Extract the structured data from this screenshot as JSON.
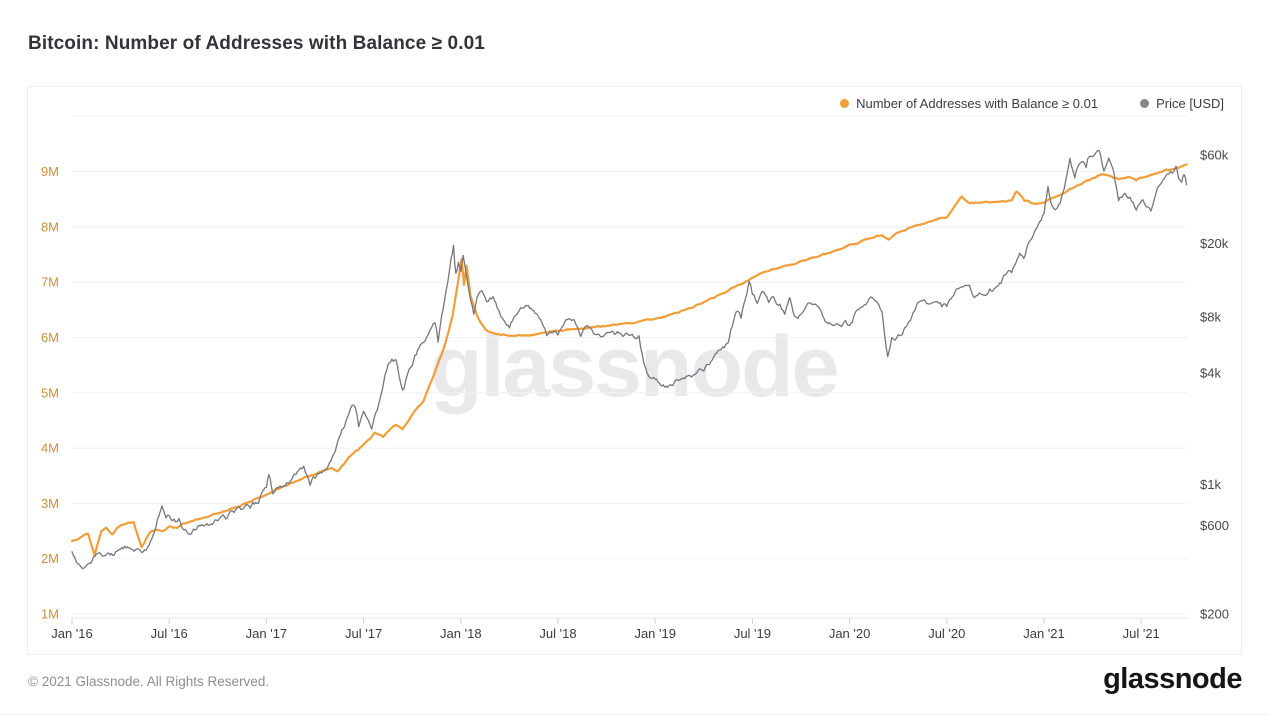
{
  "page": {
    "title": "Bitcoin: Number of Addresses with Balance ≥ 0.01",
    "footer_left": "© 2021 Glassnode. All Rights Reserved.",
    "footer_logo": "glassnode",
    "watermark": "glassnode"
  },
  "legend": [
    {
      "label": "Number of Addresses with Balance ≥ 0.01",
      "color": "#f29e38"
    },
    {
      "label": "Price [USD]",
      "color": "#85858a"
    }
  ],
  "chart_data": {
    "type": "line",
    "title": "Bitcoin: Number of Addresses with Balance ≥ 0.01",
    "x_unit": "months since Jan 2016",
    "x_ticks": [
      {
        "m": 0,
        "label": "Jan '16"
      },
      {
        "m": 6,
        "label": "Jul '16"
      },
      {
        "m": 12,
        "label": "Jan '17"
      },
      {
        "m": 18,
        "label": "Jul '17"
      },
      {
        "m": 24,
        "label": "Jan '18"
      },
      {
        "m": 30,
        "label": "Jul '18"
      },
      {
        "m": 36,
        "label": "Jan '19"
      },
      {
        "m": 42,
        "label": "Jul '19"
      },
      {
        "m": 48,
        "label": "Jan '20"
      },
      {
        "m": 54,
        "label": "Jul '20"
      },
      {
        "m": 60,
        "label": "Jan '21"
      },
      {
        "m": 66,
        "label": "Jul '21"
      }
    ],
    "y_left": {
      "scale": "linear",
      "unit": "addresses (millions)",
      "range": [
        1,
        10
      ],
      "grid": true,
      "ticks": [
        {
          "v": 1,
          "label": "1M"
        },
        {
          "v": 2,
          "label": "2M"
        },
        {
          "v": 3,
          "label": "3M"
        },
        {
          "v": 4,
          "label": "4M"
        },
        {
          "v": 5,
          "label": "5M"
        },
        {
          "v": 6,
          "label": "6M"
        },
        {
          "v": 7,
          "label": "7M"
        },
        {
          "v": 8,
          "label": "8M"
        },
        {
          "v": 9,
          "label": "9M"
        }
      ]
    },
    "y_right": {
      "scale": "log",
      "unit": "USD",
      "range": [
        200,
        97000
      ],
      "grid": false,
      "ticks": [
        {
          "v": 200,
          "label": "$200"
        },
        {
          "v": 600,
          "label": "$600"
        },
        {
          "v": 1000,
          "label": "$1k"
        },
        {
          "v": 4000,
          "label": "$4k"
        },
        {
          "v": 8000,
          "label": "$8k"
        },
        {
          "v": 20000,
          "label": "$20k"
        },
        {
          "v": 60000,
          "label": "$60k"
        }
      ]
    },
    "legend_position": "top-right",
    "colors": {
      "addresses": "#f29e38",
      "price": "#77777b",
      "left_axis_labels": "#c8913e",
      "right_axis_labels": "#47474d",
      "x_axis_labels": "#3c3c42",
      "gridline": "#f1f1f4",
      "axis_line": "#e7e7eb",
      "tick_mark": "#d2d2d8",
      "watermark": "#e9e9eb"
    },
    "series": [
      {
        "name": "Number of Addresses with Balance ≥ 0.01",
        "axis": "left",
        "unit": "millions",
        "color": "#f29e38",
        "points": [
          [
            0,
            2.32
          ],
          [
            0.6,
            2.4
          ],
          [
            1,
            2.45
          ],
          [
            1.4,
            2.06
          ],
          [
            1.8,
            2.5
          ],
          [
            2.1,
            2.56
          ],
          [
            2.5,
            2.44
          ],
          [
            2.8,
            2.56
          ],
          [
            3.2,
            2.62
          ],
          [
            3.8,
            2.66
          ],
          [
            4.3,
            2.21
          ],
          [
            4.8,
            2.47
          ],
          [
            5.2,
            2.52
          ],
          [
            5.6,
            2.5
          ],
          [
            6,
            2.58
          ],
          [
            6.5,
            2.56
          ],
          [
            7,
            2.64
          ],
          [
            8,
            2.73
          ],
          [
            9,
            2.82
          ],
          [
            10,
            2.92
          ],
          [
            11,
            3.03
          ],
          [
            12,
            3.16
          ],
          [
            13,
            3.3
          ],
          [
            14,
            3.42
          ],
          [
            15,
            3.52
          ],
          [
            16,
            3.64
          ],
          [
            16.4,
            3.58
          ],
          [
            17,
            3.8
          ],
          [
            17.5,
            3.95
          ],
          [
            18,
            4.06
          ],
          [
            18.7,
            4.28
          ],
          [
            19.2,
            4.2
          ],
          [
            20,
            4.42
          ],
          [
            20.4,
            4.34
          ],
          [
            21,
            4.6
          ],
          [
            21.7,
            4.85
          ],
          [
            22.3,
            5.3
          ],
          [
            23,
            5.85
          ],
          [
            23.5,
            6.4
          ],
          [
            23.8,
            6.95
          ],
          [
            24.05,
            7.42
          ],
          [
            24.2,
            6.95
          ],
          [
            24.35,
            7.3
          ],
          [
            24.6,
            6.75
          ],
          [
            25,
            6.4
          ],
          [
            25.5,
            6.15
          ],
          [
            26,
            6.08
          ],
          [
            27,
            6.03
          ],
          [
            28,
            6.04
          ],
          [
            29,
            6.08
          ],
          [
            30,
            6.12
          ],
          [
            31,
            6.15
          ],
          [
            32,
            6.18
          ],
          [
            33,
            6.21
          ],
          [
            34,
            6.25
          ],
          [
            35,
            6.29
          ],
          [
            36,
            6.34
          ],
          [
            37,
            6.42
          ],
          [
            38,
            6.52
          ],
          [
            39,
            6.64
          ],
          [
            40,
            6.78
          ],
          [
            41,
            6.93
          ],
          [
            42,
            7.08
          ],
          [
            43,
            7.2
          ],
          [
            44,
            7.3
          ],
          [
            45,
            7.38
          ],
          [
            46,
            7.46
          ],
          [
            47,
            7.56
          ],
          [
            48,
            7.68
          ],
          [
            49,
            7.78
          ],
          [
            50,
            7.85
          ],
          [
            50.4,
            7.77
          ],
          [
            51,
            7.9
          ],
          [
            52,
            8.02
          ],
          [
            53,
            8.1
          ],
          [
            54,
            8.17
          ],
          [
            54.9,
            8.55
          ],
          [
            55.4,
            8.43
          ],
          [
            56,
            8.44
          ],
          [
            57,
            8.45
          ],
          [
            58,
            8.48
          ],
          [
            58.3,
            8.64
          ],
          [
            58.8,
            8.47
          ],
          [
            59.4,
            8.42
          ],
          [
            60,
            8.44
          ],
          [
            61,
            8.58
          ],
          [
            62,
            8.74
          ],
          [
            63,
            8.88
          ],
          [
            63.5,
            8.95
          ],
          [
            64,
            8.93
          ],
          [
            64.6,
            8.86
          ],
          [
            65.2,
            8.9
          ],
          [
            65.7,
            8.84
          ],
          [
            66.2,
            8.9
          ],
          [
            67,
            8.97
          ],
          [
            68,
            9.05
          ],
          [
            68.8,
            9.13
          ]
        ]
      },
      {
        "name": "Price [USD]",
        "axis": "right",
        "unit": "USD",
        "color": "#77777b",
        "points": [
          [
            0,
            434
          ],
          [
            0.5,
            365
          ],
          [
            1,
            373
          ],
          [
            1.5,
            420
          ],
          [
            2,
            412
          ],
          [
            2.6,
            416
          ],
          [
            3,
            448
          ],
          [
            3.5,
            455
          ],
          [
            4,
            449
          ],
          [
            4.5,
            444
          ],
          [
            5,
            532
          ],
          [
            5.55,
            765
          ],
          [
            5.8,
            660
          ],
          [
            6,
            680
          ],
          [
            6.3,
            650
          ],
          [
            6.6,
            655
          ],
          [
            7,
            572
          ],
          [
            7.5,
            575
          ],
          [
            8,
            608
          ],
          [
            8.5,
            605
          ],
          [
            9,
            636
          ],
          [
            9.5,
            650
          ],
          [
            10,
            705
          ],
          [
            10.5,
            735
          ],
          [
            11,
            745
          ],
          [
            11.5,
            790
          ],
          [
            12,
            963
          ],
          [
            12.15,
            1130
          ],
          [
            12.4,
            890
          ],
          [
            13,
            975
          ],
          [
            13.5,
            1050
          ],
          [
            14,
            1190
          ],
          [
            14.3,
            1255
          ],
          [
            14.7,
            990
          ],
          [
            15,
            1080
          ],
          [
            15.5,
            1180
          ],
          [
            16,
            1350
          ],
          [
            16.5,
            1800
          ],
          [
            17,
            2300
          ],
          [
            17.4,
            2680
          ],
          [
            17.7,
            2050
          ],
          [
            18,
            2480
          ],
          [
            18.5,
            1990
          ],
          [
            19,
            2860
          ],
          [
            19.5,
            4400
          ],
          [
            20,
            4700
          ],
          [
            20.4,
            3230
          ],
          [
            20.7,
            3900
          ],
          [
            21,
            4370
          ],
          [
            21.5,
            5650
          ],
          [
            22,
            6470
          ],
          [
            22.4,
            7450
          ],
          [
            22.6,
            5860
          ],
          [
            23,
            9900
          ],
          [
            23.4,
            16650
          ],
          [
            23.55,
            19500
          ],
          [
            23.7,
            13800
          ],
          [
            23.85,
            15800
          ],
          [
            24,
            14100
          ],
          [
            24.15,
            17200
          ],
          [
            24.5,
            11100
          ],
          [
            24.8,
            8300
          ],
          [
            25,
            10200
          ],
          [
            25.3,
            11100
          ],
          [
            25.6,
            9700
          ],
          [
            26,
            10300
          ],
          [
            26.5,
            8000
          ],
          [
            27,
            7000
          ],
          [
            27.4,
            8200
          ],
          [
            27.7,
            9000
          ],
          [
            28,
            9240
          ],
          [
            28.5,
            8700
          ],
          [
            29,
            7500
          ],
          [
            29.3,
            6350
          ],
          [
            29.7,
            6600
          ],
          [
            30,
            6400
          ],
          [
            30.5,
            7750
          ],
          [
            31,
            7730
          ],
          [
            31.4,
            6300
          ],
          [
            31.8,
            7200
          ],
          [
            32,
            7000
          ],
          [
            32.3,
            6450
          ],
          [
            33,
            6600
          ],
          [
            33.5,
            6450
          ],
          [
            34,
            6300
          ],
          [
            34.4,
            6380
          ],
          [
            35,
            6350
          ],
          [
            35.3,
            4500
          ],
          [
            35.7,
            3750
          ],
          [
            36,
            3700
          ],
          [
            36.5,
            3450
          ],
          [
            37,
            3440
          ],
          [
            37.5,
            3650
          ],
          [
            38,
            3850
          ],
          [
            38.5,
            3950
          ],
          [
            39,
            4100
          ],
          [
            39.7,
            5050
          ],
          [
            40,
            5320
          ],
          [
            40.5,
            5800
          ],
          [
            41,
            8550
          ],
          [
            41.3,
            7900
          ],
          [
            41.8,
            12500
          ],
          [
            42,
            10600
          ],
          [
            42.3,
            9500
          ],
          [
            42.6,
            11000
          ],
          [
            43,
            9600
          ],
          [
            43.3,
            10300
          ],
          [
            43.7,
            9400
          ],
          [
            44,
            8300
          ],
          [
            44.3,
            10200
          ],
          [
            44.6,
            8100
          ],
          [
            45,
            8300
          ],
          [
            45.6,
            9500
          ],
          [
            46,
            9200
          ],
          [
            46.5,
            7550
          ],
          [
            47,
            7200
          ],
          [
            47.5,
            7100
          ],
          [
            48,
            7200
          ],
          [
            48.5,
            8800
          ],
          [
            49,
            9350
          ],
          [
            49.4,
            10200
          ],
          [
            50,
            8550
          ],
          [
            50.35,
            4900
          ],
          [
            50.6,
            6200
          ],
          [
            51,
            6440
          ],
          [
            51.5,
            7100
          ],
          [
            52,
            8620
          ],
          [
            52.5,
            9800
          ],
          [
            53,
            9450
          ],
          [
            53.4,
            9700
          ],
          [
            53.7,
            9100
          ],
          [
            54,
            9140
          ],
          [
            54.6,
            11350
          ],
          [
            55,
            11650
          ],
          [
            55.4,
            11900
          ],
          [
            55.7,
            10200
          ],
          [
            56,
            10780
          ],
          [
            56.4,
            10500
          ],
          [
            57,
            11500
          ],
          [
            57.7,
            13800
          ],
          [
            58,
            13900
          ],
          [
            58.5,
            17700
          ],
          [
            58.75,
            16600
          ],
          [
            59,
            19700
          ],
          [
            59.5,
            23800
          ],
          [
            60,
            29000
          ],
          [
            60.25,
            40600
          ],
          [
            60.5,
            32000
          ],
          [
            60.7,
            30400
          ],
          [
            61,
            33100
          ],
          [
            61.6,
            57500
          ],
          [
            61.9,
            45200
          ],
          [
            62,
            49600
          ],
          [
            62.3,
            54900
          ],
          [
            62.6,
            51300
          ],
          [
            62.8,
            58900
          ],
          [
            63,
            58800
          ],
          [
            63.4,
            63500
          ],
          [
            63.7,
            49100
          ],
          [
            64,
            57750
          ],
          [
            64.3,
            49000
          ],
          [
            64.6,
            34000
          ],
          [
            65,
            37300
          ],
          [
            65.3,
            35600
          ],
          [
            65.7,
            30200
          ],
          [
            66,
            33800
          ],
          [
            66.3,
            31500
          ],
          [
            66.6,
            29900
          ],
          [
            67,
            39900
          ],
          [
            67.5,
            46000
          ],
          [
            67.8,
            48800
          ],
          [
            68,
            48800
          ],
          [
            68.15,
            52200
          ],
          [
            68.3,
            45100
          ],
          [
            68.5,
            42800
          ],
          [
            68.65,
            47000
          ],
          [
            68.8,
            41500
          ]
        ]
      }
    ]
  }
}
